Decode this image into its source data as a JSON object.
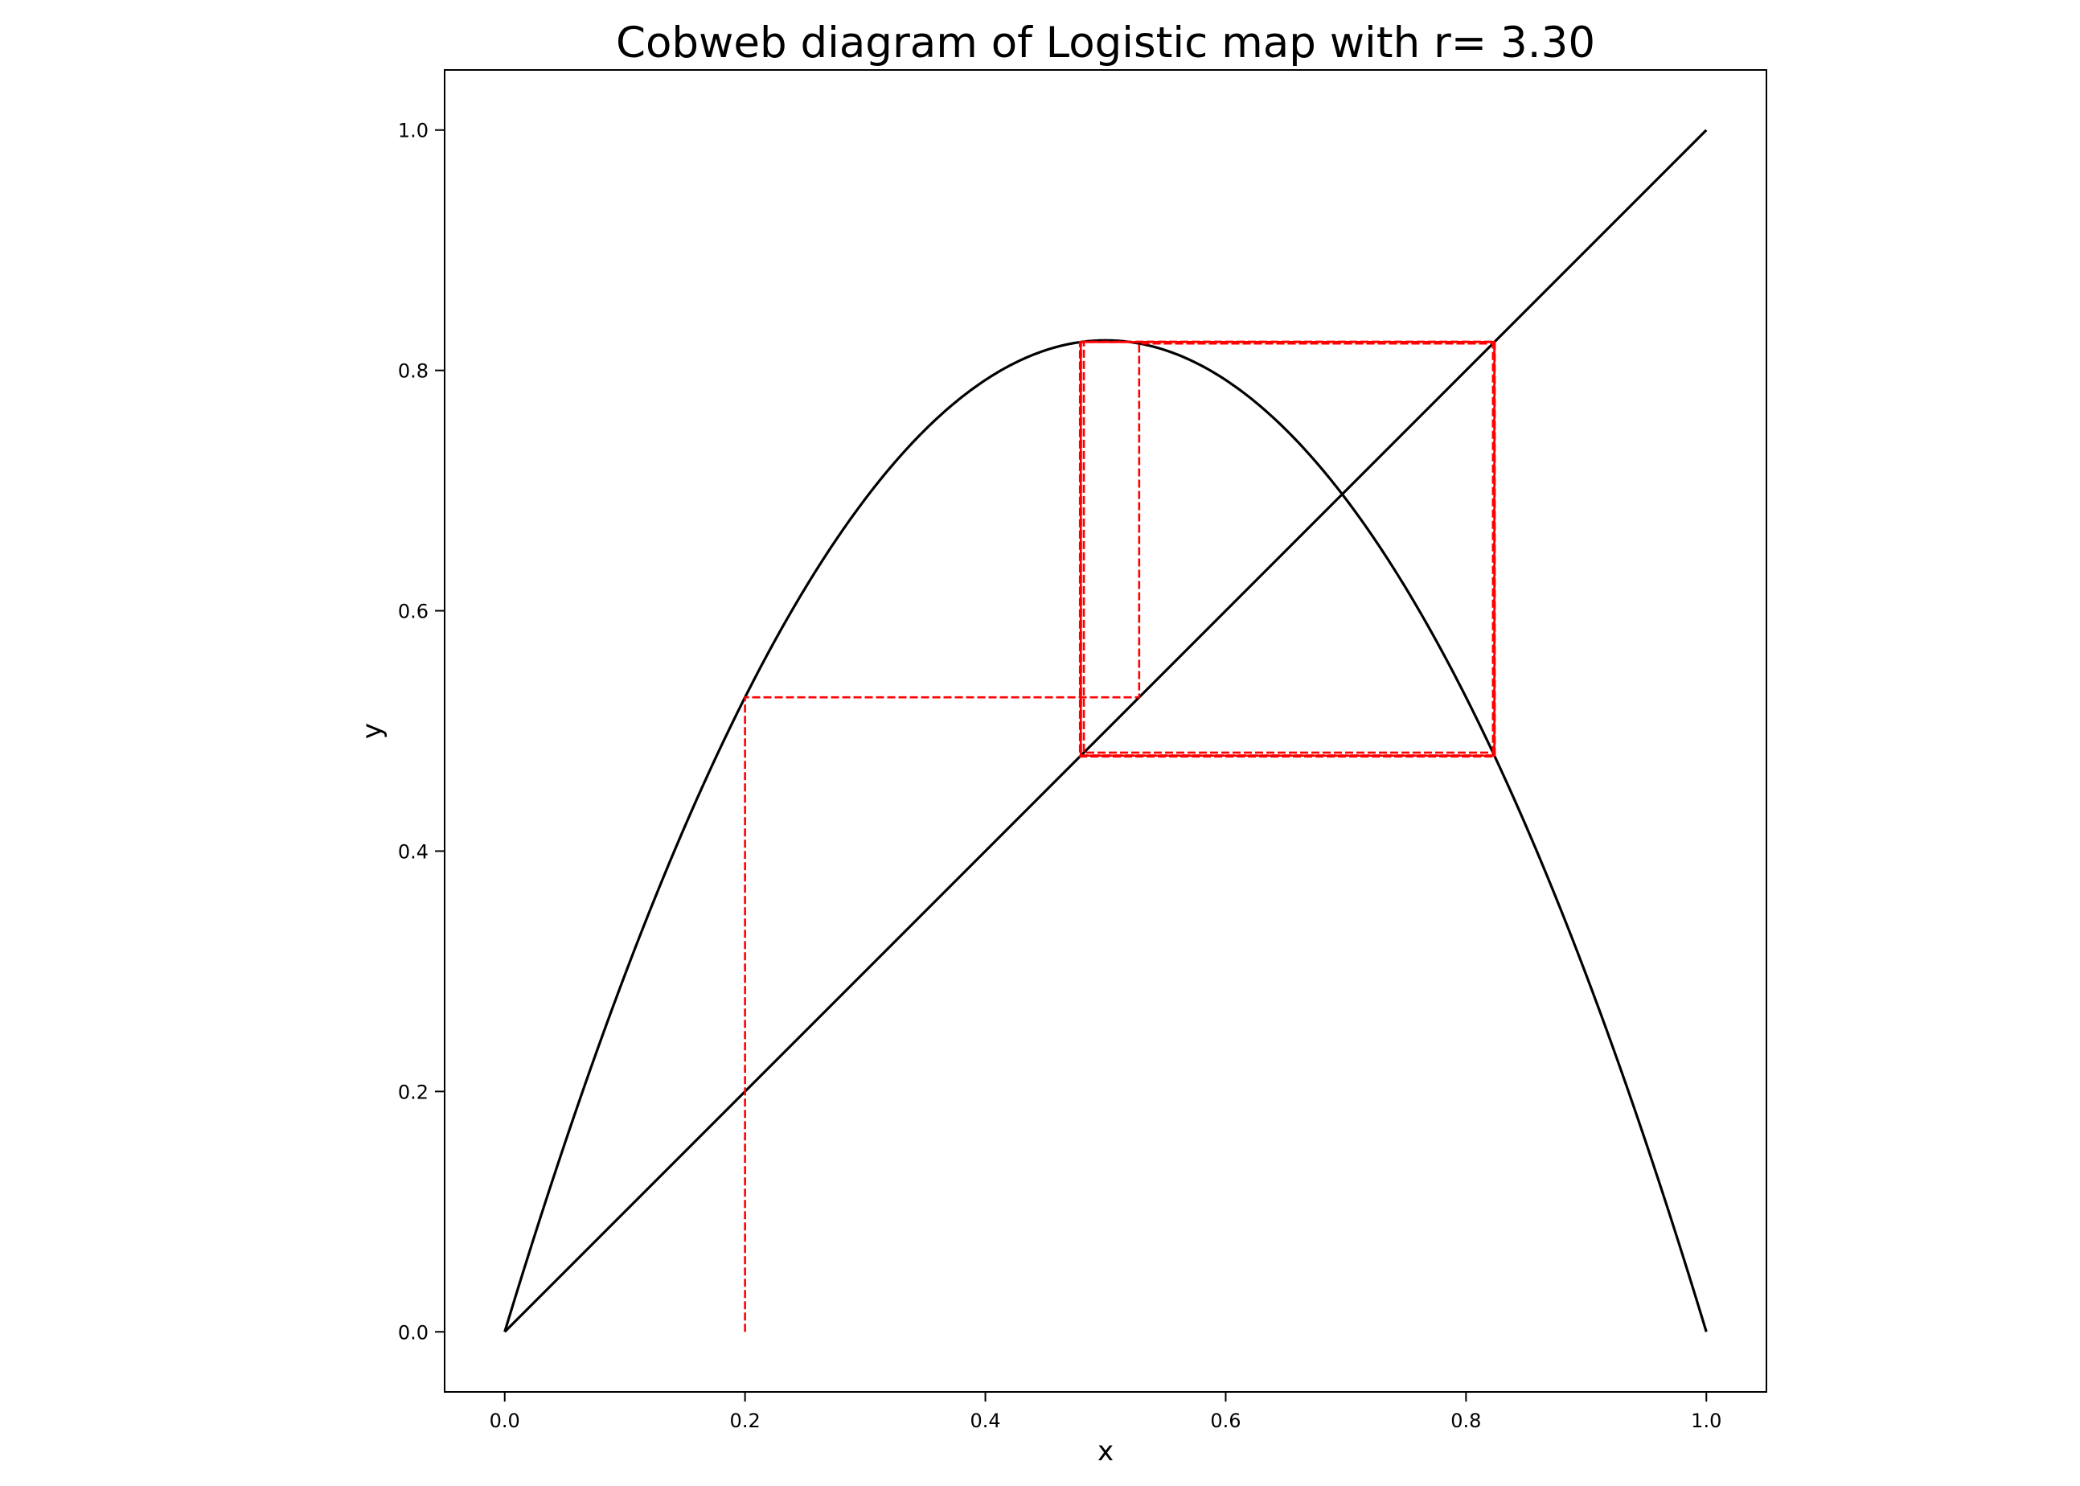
{
  "chart_data": {
    "type": "line",
    "title": "Cobweb diagram of Logistic map with r= 3.30",
    "xlabel": "x",
    "ylabel": "y",
    "r": 3.3,
    "xlim": [
      -0.05,
      1.05
    ],
    "ylim": [
      -0.05,
      1.05
    ],
    "xticks": [
      "0.0",
      "0.2",
      "0.4",
      "0.6",
      "0.8",
      "1.0"
    ],
    "yticks": [
      "0.0",
      "0.2",
      "0.4",
      "0.6",
      "0.8",
      "1.0"
    ],
    "grid": false,
    "legend": "none",
    "series": [
      {
        "kind": "logistic-curve",
        "equation": "y = 3.30·x·(1 − x)",
        "x_range": [
          0,
          1
        ],
        "color": "#000000",
        "style": "solid"
      },
      {
        "kind": "diagonal",
        "equation": "y = x",
        "x_range": [
          0,
          1
        ],
        "color": "#000000",
        "style": "solid"
      },
      {
        "kind": "cobweb",
        "x0": 0.2,
        "iterations": 40,
        "color": "#ff0000",
        "style": "dashed"
      }
    ]
  }
}
